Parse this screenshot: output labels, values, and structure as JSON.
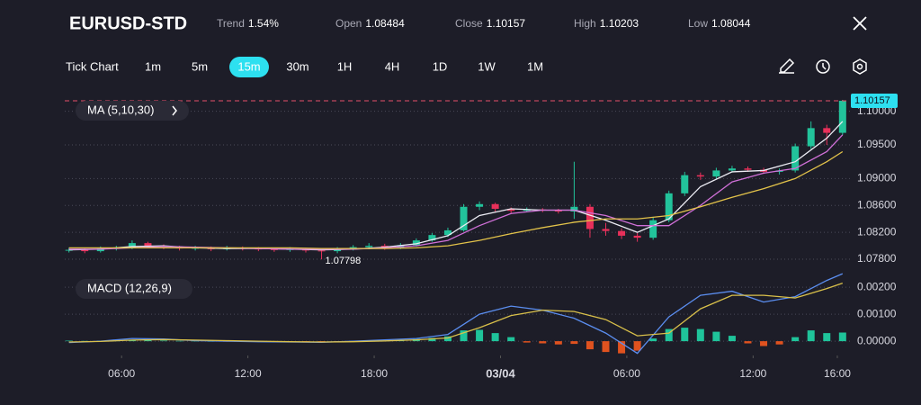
{
  "header": {
    "symbol": "EURUSD-STD",
    "stats": [
      {
        "label": "Trend",
        "value": "1.54%"
      },
      {
        "label": "Open",
        "value": "1.08484"
      },
      {
        "label": "Close",
        "value": "1.10157"
      },
      {
        "label": "High",
        "value": "1.10203"
      },
      {
        "label": "Low",
        "value": "1.08044"
      }
    ]
  },
  "toolbar": {
    "chart_mode": "Tick Chart",
    "intervals": [
      "1m",
      "5m",
      "15m",
      "30m",
      "1H",
      "4H",
      "1D",
      "1W",
      "1M"
    ],
    "selected": 2
  },
  "x_axis": {
    "xlim": [
      3.3,
      40.6
    ],
    "xticks": [
      {
        "value": 6,
        "label": "06:00"
      },
      {
        "value": 12,
        "label": "12:00"
      },
      {
        "value": 18,
        "label": "18:00"
      },
      {
        "value": 24,
        "label": "03/04"
      },
      {
        "value": 30,
        "label": "06:00"
      },
      {
        "value": 36,
        "label": "12:00"
      },
      {
        "value": 40,
        "label": "16:00"
      }
    ]
  },
  "price_chart": {
    "type": "candlestick",
    "indicator": "MA (5,10,30)",
    "up_color": "#22c39b",
    "down_color": "#e8305a",
    "grid": true,
    "ylim": [
      1.0764,
      1.1025
    ],
    "yticks": [
      {
        "value": 1.1,
        "label": "1.10000"
      },
      {
        "value": 1.095,
        "label": "1.09500"
      },
      {
        "value": 1.09,
        "label": "1.09000"
      },
      {
        "value": 1.086,
        "label": "1.08600"
      },
      {
        "value": 1.082,
        "label": "1.08200"
      },
      {
        "value": 1.078,
        "label": "1.07800"
      }
    ],
    "x": [
      3.5,
      4.25,
      5,
      5.75,
      6.5,
      7.25,
      8,
      8.75,
      9.5,
      10.25,
      11,
      11.75,
      12.5,
      13.25,
      14,
      14.75,
      15.5,
      16.25,
      17,
      17.75,
      18.5,
      19.25,
      20,
      20.75,
      21.5,
      22.25,
      23,
      23.75,
      24.5,
      25.25,
      26,
      26.75,
      27.5,
      28.25,
      29,
      29.75,
      30.5,
      31.25,
      32,
      32.75,
      33.5,
      34.25,
      35,
      35.75,
      36.5,
      37.25,
      38,
      38.75,
      39.5,
      40.25
    ],
    "open": [
      1.0793,
      1.0794,
      1.0792,
      1.0796,
      1.0797,
      1.0804,
      1.08,
      1.0798,
      1.0796,
      1.0797,
      1.0795,
      1.0797,
      1.0796,
      1.0795,
      1.0794,
      1.0795,
      1.0793,
      1.0792,
      1.0795,
      1.0798,
      1.08,
      1.0797,
      1.0801,
      1.0808,
      1.0816,
      1.0823,
      1.0858,
      1.0862,
      1.0855,
      1.0852,
      1.0854,
      1.0853,
      1.0851,
      1.0858,
      1.0825,
      1.0822,
      1.0815,
      1.0812,
      1.0838,
      1.0878,
      1.0905,
      1.0903,
      1.0912,
      1.0915,
      1.0913,
      1.091,
      1.0912,
      1.0948,
      1.0975,
      1.0968
    ],
    "high": [
      1.0797,
      1.0796,
      1.0799,
      1.08,
      1.0808,
      1.0806,
      1.0802,
      1.08,
      1.08,
      1.0799,
      1.08,
      1.0799,
      1.0798,
      1.0797,
      1.0798,
      1.0797,
      1.0796,
      1.0798,
      1.0801,
      1.0804,
      1.0803,
      1.0804,
      1.0811,
      1.0819,
      1.0827,
      1.0862,
      1.0866,
      1.0864,
      1.0857,
      1.0857,
      1.0856,
      1.0855,
      1.0925,
      1.0862,
      1.0834,
      1.0826,
      1.0819,
      1.0842,
      1.0882,
      1.091,
      1.0909,
      1.0916,
      1.0919,
      1.0918,
      1.0916,
      1.0915,
      1.0952,
      1.0985,
      1.098,
      1.1017
    ],
    "low": [
      1.079,
      1.0789,
      1.079,
      1.0793,
      1.0795,
      1.0797,
      1.0795,
      1.0793,
      1.0793,
      1.0792,
      1.0793,
      1.0793,
      1.0792,
      1.0791,
      1.0791,
      1.079,
      1.07798,
      1.0789,
      1.0793,
      1.0795,
      1.0794,
      1.0795,
      1.0799,
      1.0806,
      1.0813,
      1.0821,
      1.0853,
      1.0851,
      1.0849,
      1.085,
      1.085,
      1.0848,
      1.084,
      1.0812,
      1.0815,
      1.081,
      1.0806,
      1.0809,
      1.0835,
      1.0874,
      1.0898,
      1.09,
      1.0909,
      1.091,
      1.0907,
      1.0906,
      1.0909,
      1.0944,
      1.095,
      1.0965
    ],
    "close": [
      1.0794,
      1.0792,
      1.0796,
      1.0797,
      1.0804,
      1.08,
      1.0798,
      1.0796,
      1.0797,
      1.0795,
      1.0797,
      1.0796,
      1.0795,
      1.0794,
      1.0795,
      1.0793,
      1.0792,
      1.0795,
      1.0798,
      1.08,
      1.0797,
      1.0801,
      1.0808,
      1.0816,
      1.0823,
      1.0858,
      1.0862,
      1.0855,
      1.0852,
      1.0854,
      1.0853,
      1.0851,
      1.0858,
      1.0825,
      1.0822,
      1.0815,
      1.0812,
      1.0838,
      1.0878,
      1.0905,
      1.0903,
      1.0912,
      1.0915,
      1.0913,
      1.091,
      1.0912,
      1.0948,
      1.0975,
      1.0968,
      1.10157
    ],
    "last_color": "#e5506a",
    "last_label_color": "#2de0f0",
    "ma_x": [
      3.5,
      5,
      6.5,
      8,
      9.5,
      11,
      12.5,
      14,
      15.5,
      17,
      18.5,
      20,
      21.5,
      23,
      24.5,
      26,
      27.5,
      29,
      30.5,
      32,
      33.5,
      35,
      36.5,
      38,
      39.5,
      40.25
    ],
    "ma": [
      {
        "color": "#ececf4",
        "values": [
          1.0794,
          1.0795,
          1.0799,
          1.08,
          1.0797,
          1.0796,
          1.0796,
          1.0795,
          1.0794,
          1.0795,
          1.0798,
          1.0803,
          1.0815,
          1.0845,
          1.0855,
          1.0853,
          1.0853,
          1.0838,
          1.082,
          1.084,
          1.0888,
          1.091,
          1.0912,
          1.0925,
          1.096,
          1.0985
        ]
      },
      {
        "color": "#d070d8",
        "values": [
          1.0795,
          1.0795,
          1.0797,
          1.0799,
          1.0798,
          1.0797,
          1.0796,
          1.0795,
          1.0795,
          1.0795,
          1.0797,
          1.08,
          1.0808,
          1.083,
          1.0848,
          1.0853,
          1.0853,
          1.0845,
          1.083,
          1.083,
          1.086,
          1.0895,
          1.0908,
          1.0915,
          1.094,
          1.0965
        ]
      },
      {
        "color": "#e3c34a",
        "values": [
          1.0797,
          1.0797,
          1.0797,
          1.0797,
          1.0797,
          1.0797,
          1.0797,
          1.0797,
          1.0796,
          1.0796,
          1.0796,
          1.0797,
          1.08,
          1.0808,
          1.0818,
          1.0827,
          1.0835,
          1.084,
          1.084,
          1.0845,
          1.0858,
          1.0872,
          1.0885,
          1.09,
          1.0925,
          1.094
        ]
      }
    ]
  },
  "macd_chart": {
    "type": "macd",
    "indicator": "MACD (12,26,9)",
    "positive_color": "#1fc39a",
    "negative_color": "#e0521f",
    "grid": true,
    "ylim": [
      -0.00053,
      0.00247
    ],
    "yticks": [
      {
        "value": 0.002,
        "label": "0.00200"
      },
      {
        "value": 0.001,
        "label": "0.00100"
      },
      {
        "value": 0,
        "label": "0.00000"
      }
    ],
    "histogram": [
      2e-05,
      1e-05,
      2e-05,
      3e-05,
      5e-05,
      4e-05,
      2e-05,
      1e-05,
      1e-05,
      0,
      -1e-05,
      0,
      0,
      -1e-05,
      -1e-05,
      -2e-05,
      -3e-05,
      -1e-05,
      1e-05,
      3e-05,
      2e-05,
      4e-05,
      8e-05,
      0.00012,
      0.00018,
      0.0004,
      0.00042,
      0.0003,
      0.00015,
      -5e-05,
      -8e-05,
      -0.00012,
      -0.0001,
      -0.0003,
      -0.0004,
      -0.00045,
      -0.00035,
      0.0001,
      0.00045,
      0.0005,
      0.00045,
      0.00035,
      0.0002,
      -8e-05,
      -0.00018,
      -0.00012,
      0.00015,
      0.0004,
      0.0003,
      0.00032
    ],
    "lines": [
      {
        "color": "#5b8ef0",
        "values": [
          -5e-05,
          0,
          0.0001,
          8e-05,
          2e-05,
          0,
          -2e-05,
          -3e-05,
          -4e-05,
          0,
          5e-05,
          0.0001,
          0.00025,
          0.001,
          0.0013,
          0.00115,
          0.00085,
          0.0003,
          -0.00045,
          0.0009,
          0.0017,
          0.00185,
          0.00145,
          0.00165,
          0.00225,
          0.0025
        ]
      },
      {
        "color": "#d9c04a",
        "values": [
          -3e-05,
          -1e-05,
          4e-05,
          6e-05,
          4e-05,
          2e-05,
          0,
          -2e-05,
          -3e-05,
          -2e-05,
          1e-05,
          5e-05,
          0.00012,
          0.0005,
          0.00095,
          0.00115,
          0.0011,
          0.0008,
          0.0002,
          0.0003,
          0.0012,
          0.0017,
          0.0017,
          0.0016,
          0.00195,
          0.00215
        ]
      }
    ]
  }
}
